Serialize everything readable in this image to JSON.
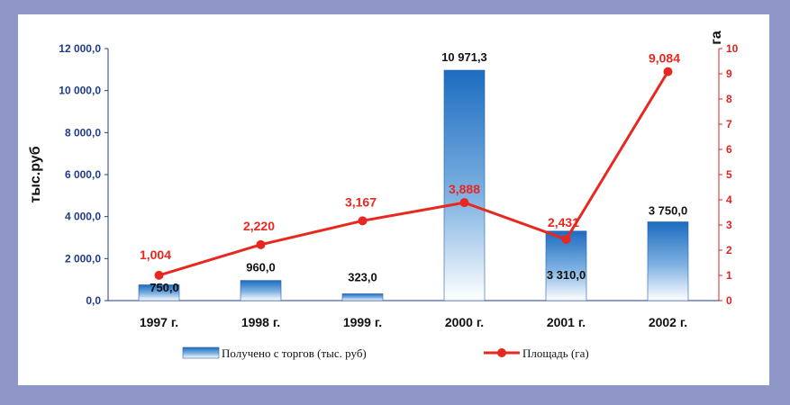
{
  "chart_data": {
    "type": "bar",
    "categories": [
      "1997 г.",
      "1998 г.",
      "1999 г.",
      "2000 г.",
      "2001 г.",
      "2002 г."
    ],
    "series": [
      {
        "name": "Получено с торгов (тыс. руб)",
        "type": "bar",
        "axis": "left",
        "values": [
          750.0,
          960.0,
          323.0,
          10971.3,
          3310.0,
          3750.0
        ],
        "labels": [
          "750,0",
          "960,0",
          "323,0",
          "10 971,3",
          "3 310,0",
          "3 750,0"
        ],
        "color": "#1e6fc2"
      },
      {
        "name": "Площадь (га)",
        "type": "line",
        "axis": "right",
        "values": [
          1.004,
          2.22,
          3.167,
          3.888,
          2.431,
          9.084
        ],
        "labels": [
          "1,004",
          "2,220",
          "3,167",
          "3,888",
          "2,431",
          "9,084"
        ],
        "color": "#e8281f"
      }
    ],
    "ylabel": "тыс.руб",
    "y2label": "га",
    "ylim": [
      0,
      12000
    ],
    "y2lim": [
      0,
      10
    ],
    "yticks": [
      "0,0",
      "2 000,0",
      "4 000,0",
      "6 000,0",
      "8 000,0",
      "10 000,0",
      "12 000,0"
    ],
    "y2ticks": [
      "0",
      "1",
      "2",
      "3",
      "4",
      "5",
      "6",
      "7",
      "8",
      "9",
      "10"
    ],
    "legend_position": "bottom",
    "grid": false
  }
}
